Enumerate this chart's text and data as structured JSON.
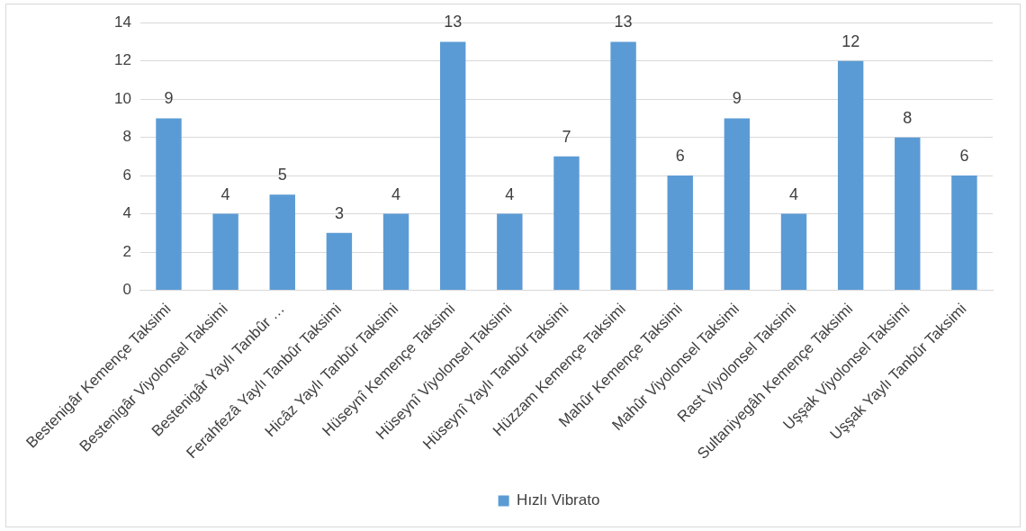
{
  "chart_data": {
    "type": "bar",
    "categories": [
      "Bestenigâr Kemençe Taksimi",
      "Bestenigâr Viyolonsel Taksimi",
      "Bestenigâr Yaylı Tanbûr …",
      "Ferahfezâ Yaylı Tanbûr Taksimi",
      "Hicâz Yaylı Tanbûr Taksimi",
      "Hüseynî Kemençe Taksimi",
      "Hüseynî Viyolonsel Taksimi",
      "Hüseynî Yaylı Tanbûr Taksimi",
      "Hüzzam Kemençe Taksimi",
      "Mahûr Kemençe Taksimi",
      "Mahûr Viyolonsel Taksimi",
      "Rast Viyolonsel Taksimi",
      "Sultaniyegâh Kemençe Taksimi",
      "Uşşak Viyolonsel Taksimi",
      "Uşşak Yaylı Tanbûr Taksimi"
    ],
    "series": [
      {
        "name": "Hızlı Vibrato",
        "color": "#5b9bd5",
        "values": [
          9,
          4,
          5,
          3,
          4,
          13,
          4,
          7,
          13,
          6,
          9,
          4,
          12,
          8,
          6
        ]
      }
    ],
    "ylim": [
      0,
      14
    ],
    "yticks": [
      0,
      2,
      4,
      6,
      8,
      10,
      12,
      14
    ],
    "grid": "y",
    "legend": "bottom",
    "data_labels": true
  }
}
